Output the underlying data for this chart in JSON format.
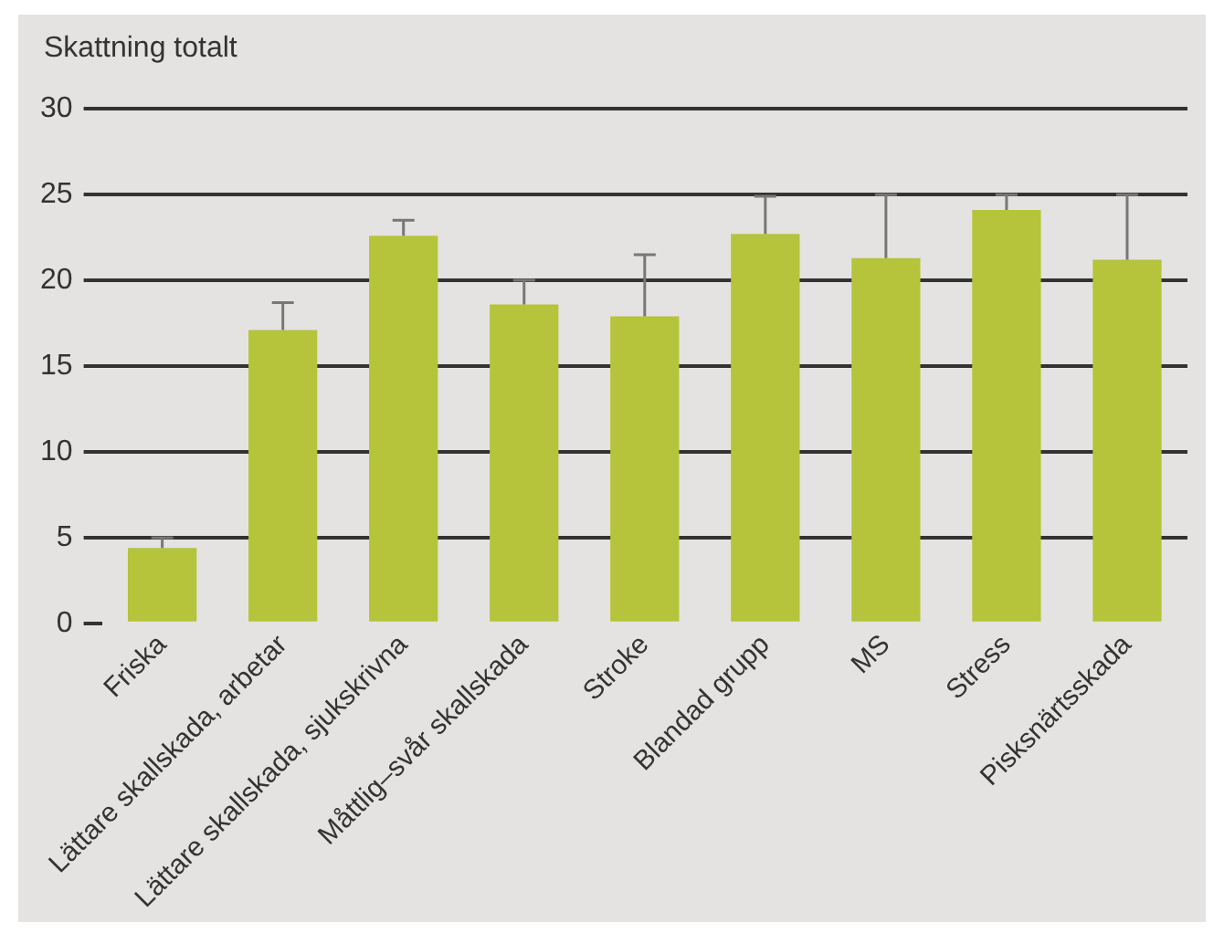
{
  "chart_data": {
    "type": "bar",
    "ylabel": "Skattning totalt",
    "categories": [
      "Friska",
      "Lättare skallskada, arbetar",
      "Lättare skallskada, sjukskrivna",
      "Måttlig–svår skallskada",
      "Stroke",
      "Blandad grupp",
      "MS",
      "Stress",
      "Pisksnärtsskada"
    ],
    "values": [
      4.4,
      17.1,
      22.6,
      18.6,
      17.9,
      22.7,
      21.3,
      24.1,
      21.2
    ],
    "errors": [
      [
        4.4,
        5.0
      ],
      [
        17.1,
        18.7
      ],
      [
        22.6,
        23.5
      ],
      [
        18.6,
        20.0
      ],
      [
        17.9,
        21.5
      ],
      [
        22.7,
        24.9
      ],
      [
        21.3,
        25.0
      ],
      [
        24.1,
        25.0
      ],
      [
        21.2,
        25.0
      ]
    ],
    "color": "#b5c43a",
    "ylim": [
      0,
      30
    ],
    "yticks": [
      0,
      5,
      10,
      15,
      20,
      25,
      30
    ],
    "grid": "y",
    "legend": false
  }
}
